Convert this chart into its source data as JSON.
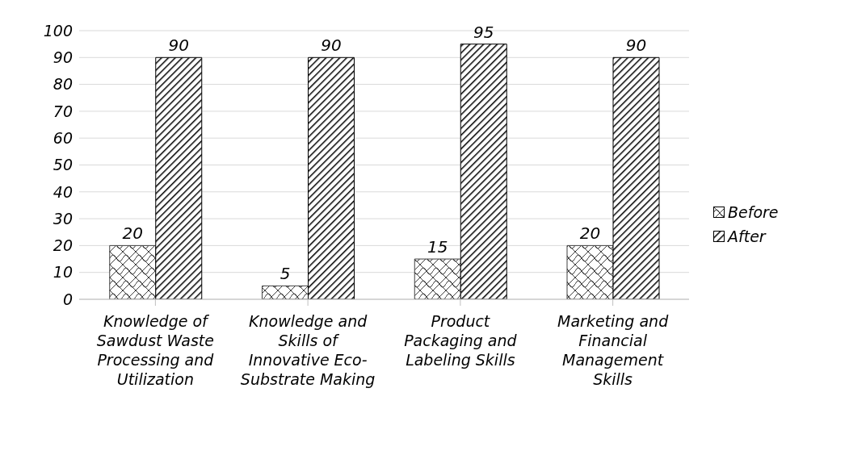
{
  "chart_data": {
    "type": "bar",
    "categories": [
      "Knowledge of Sawdust Waste Processing and Utilization",
      "Knowledge and Skills of Innovative Eco-Substrate Making",
      "Product Packaging and Labeling Skills",
      "Marketing and Financial Management Skills"
    ],
    "series": [
      {
        "name": "Before",
        "color": "#404040",
        "values": [
          20,
          5,
          15,
          20
        ]
      },
      {
        "name": "After",
        "color": "#000000",
        "values": [
          90,
          90,
          95,
          90
        ]
      }
    ],
    "ylim": [
      0,
      100
    ],
    "yticks": [
      0,
      10,
      20,
      30,
      40,
      50,
      60,
      70,
      80,
      90,
      100
    ],
    "grid": "y",
    "legend": "right",
    "data_labels": true
  }
}
